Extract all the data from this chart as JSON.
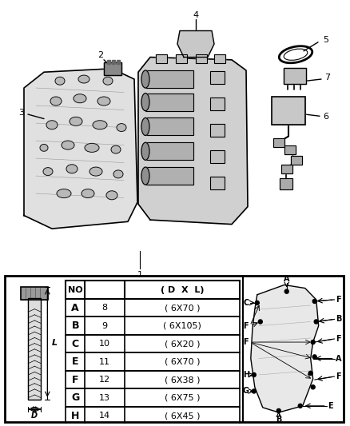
{
  "bg_color": "#ffffff",
  "table_rows": [
    {
      "letter": "A",
      "no": "8",
      "dim": "( 6X70 )"
    },
    {
      "letter": "B",
      "no": "9",
      "dim": "( 6X105)"
    },
    {
      "letter": "C",
      "no": "10",
      "dim": "( 6X20 )"
    },
    {
      "letter": "E",
      "no": "11",
      "dim": "( 6X70 )"
    },
    {
      "letter": "F",
      "no": "12",
      "dim": "( 6X38 )"
    },
    {
      "letter": "G",
      "no": "13",
      "dim": "( 6X75 )"
    },
    {
      "letter": "H",
      "no": "14",
      "dim": "( 6X45 )"
    }
  ]
}
